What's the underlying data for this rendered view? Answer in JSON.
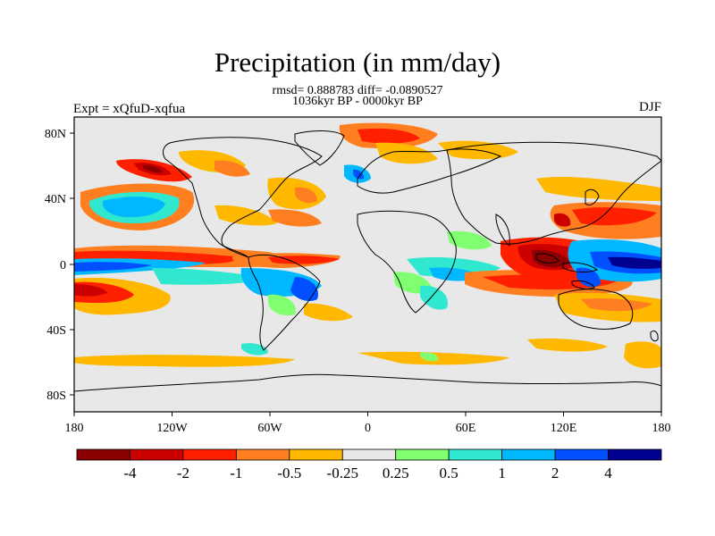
{
  "header": {
    "title": "Precipitation (in mm/day)",
    "stats": "rmsd= 0.888783 diff= -0.0890527",
    "period": "1036kyr BP - 0000kyr BP",
    "experiment": "Expt = xQfuD-xqfua",
    "season": "DJF"
  },
  "axes": {
    "lon_ticks": [
      "180",
      "120W",
      "60W",
      "0",
      "60E",
      "120E",
      "180"
    ],
    "lat_ticks": [
      "80N",
      "40N",
      "0",
      "40S",
      "80S"
    ]
  },
  "colorbar": {
    "colors": [
      "#8b0000",
      "#cc0000",
      "#ff2000",
      "#ff7f20",
      "#ffb800",
      "#e8e8e8",
      "#80ff70",
      "#30e8d0",
      "#00b8ff",
      "#0050ff",
      "#000090"
    ],
    "labels": [
      "-4",
      "-2",
      "-1",
      "-0.5",
      "-0.25",
      "0.25",
      "0.5",
      "1",
      "2",
      "4"
    ]
  },
  "palette": {
    "land_line": "#000000",
    "background": "#e8e8e8"
  }
}
